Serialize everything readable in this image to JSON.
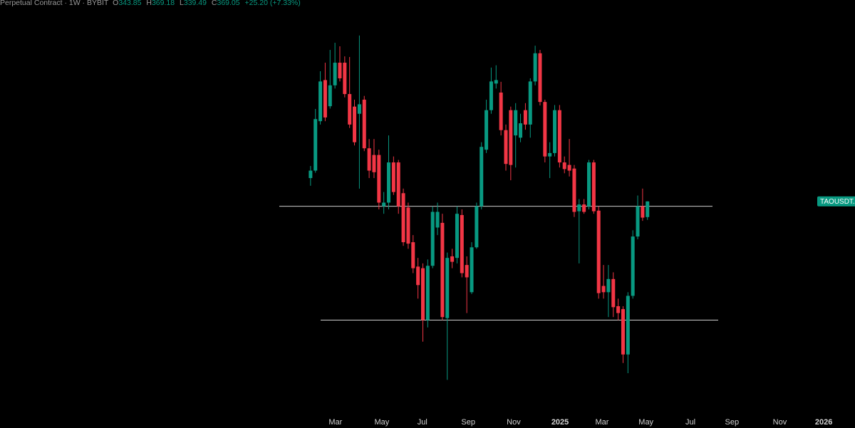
{
  "chart_data": {
    "type": "candlestick",
    "title": "Perpetual Contract · 1W · BYBIT",
    "ohlc_labels": [
      "O",
      "H",
      "L",
      "C"
    ],
    "change": "+25.20 (+7.33%)",
    "symbol": "TAOUSDT.P",
    "log_scale": true,
    "ylim": [
      150,
      800
    ],
    "xlim": [
      -6.4,
      111.5
    ],
    "xticks": [
      {
        "value": 5.1,
        "label": "Mar"
      },
      {
        "value": 14.6,
        "label": "May"
      },
      {
        "value": 22.9,
        "label": "Jul"
      },
      {
        "value": 32.3,
        "label": "Sep"
      },
      {
        "value": 41.6,
        "label": "Nov"
      },
      {
        "value": 51.1,
        "label": "2025"
      },
      {
        "value": 59.7,
        "label": "Mar"
      },
      {
        "value": 68.7,
        "label": "May"
      },
      {
        "value": 77.8,
        "label": "Jul"
      },
      {
        "value": 86.3,
        "label": "Sep"
      },
      {
        "value": 96.1,
        "label": "Nov"
      },
      {
        "value": 105.1,
        "label": "2026"
      }
    ],
    "up_color": "#089981",
    "down_color": "#f23645",
    "levels": [
      361,
      216
    ],
    "candles": {
      "open": [
        410,
        424,
        530,
        638,
        567,
        623,
        690,
        690,
        599,
        566,
        548,
        584,
        469,
        455,
        455,
        361,
        367,
        440,
        440,
        383,
        359,
        307,
        275,
        273,
        216,
        276,
        328,
        335,
        218,
        288,
        286,
        347,
        277,
        245,
        300,
        361,
        466,
        557,
        628,
        603,
        509,
        557,
        497,
        492,
        557,
        522,
        634,
        720,
        578,
        452,
        459,
        557,
        440,
        435,
        428,
        353,
        364,
        361,
        440,
        354,
        252,
        245,
        260,
        230,
        227,
        185,
        241,
        315,
        361,
        343.85
      ],
      "high": [
        433,
        560,
        664,
        690,
        731,
        755,
        743,
        710,
        708,
        584,
        780,
        594,
        489,
        489,
        466,
        385,
        497,
        452,
        445,
        391,
        367,
        317,
        286,
        279,
        284,
        361,
        367,
        349,
        293,
        298,
        361,
        356,
        288,
        307,
        367,
        482,
        584,
        675,
        682,
        633,
        522,
        566,
        575,
        548,
        575,
        643,
        745,
        731,
        584,
        482,
        570,
        570,
        452,
        489,
        435,
        373,
        373,
        445,
        445,
        361,
        277,
        277,
        268,
        238,
        230,
        245,
        324,
        379,
        391,
        369.18
      ],
      "low": [
        396,
        420,
        522,
        530,
        561,
        614,
        634,
        590,
        514,
        475,
        391,
        463,
        410,
        410,
        356,
        349,
        356,
        380,
        349,
        302,
        298,
        267,
        238,
        196,
        209,
        273,
        317,
        216,
        165,
        273,
        279,
        262,
        223,
        243,
        298,
        356,
        459,
        548,
        614,
        497,
        424,
        406,
        430,
        482,
        510,
        492,
        623,
        569,
        440,
        410,
        452,
        430,
        419,
        413,
        344,
        279,
        349,
        356,
        349,
        238,
        238,
        219,
        219,
        216,
        178,
        170,
        238,
        311,
        338,
        339.49
      ],
      "close": [
        424,
        535,
        634,
        539,
        623,
        690,
        643,
        599,
        522,
        482,
        572,
        469,
        424,
        421,
        367,
        367,
        440,
        385,
        361,
        307,
        305,
        273,
        253,
        216,
        276,
        352,
        352,
        219,
        286,
        281,
        349,
        267,
        262,
        300,
        361,
        472,
        557,
        634,
        638,
        509,
        437,
        435,
        557,
        525,
        522,
        634,
        720,
        578,
        452,
        459,
        557,
        440,
        427,
        424,
        352,
        364,
        352,
        440,
        353,
        244,
        245,
        260,
        229,
        223,
        185,
        241,
        315,
        361,
        343,
        369.05
      ]
    }
  }
}
